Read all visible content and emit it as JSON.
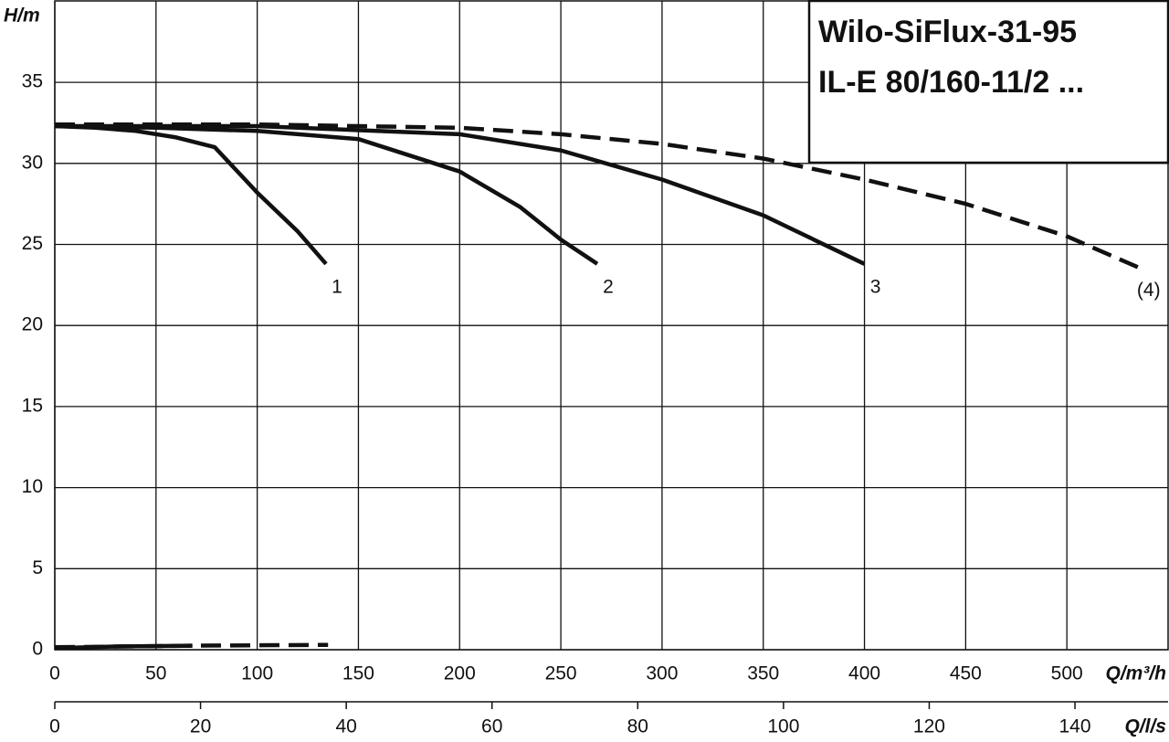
{
  "chart_data": {
    "type": "line",
    "title": [
      "Wilo-SiFlux-31-95",
      "IL-E 80/160-11/2 ..."
    ],
    "y_label": "H/m",
    "x_label": "Q/m³/h",
    "x2_label": "Q/l/s",
    "xlim": [
      0,
      550
    ],
    "xticks": [
      0,
      50,
      100,
      150,
      200,
      250,
      300,
      350,
      400,
      450,
      500
    ],
    "ylim": [
      0,
      40
    ],
    "yticks": [
      0,
      5,
      10,
      15,
      20,
      25,
      30,
      35
    ],
    "x2lim": [
      0,
      152.78
    ],
    "x2ticks": [
      0,
      20,
      40,
      60,
      80,
      100,
      120,
      140
    ],
    "grid": true,
    "series": [
      {
        "name": "1",
        "color": "#111111",
        "dash": false,
        "x": [
          0,
          20,
          40,
          60,
          79,
          100,
          120,
          134
        ],
        "values": [
          32.3,
          32.2,
          32,
          31.6,
          31,
          28.2,
          25.8,
          23.8
        ]
      },
      {
        "name": "2",
        "color": "#111111",
        "dash": false,
        "x": [
          0,
          50,
          100,
          150,
          200,
          230,
          250,
          268
        ],
        "values": [
          32.3,
          32.2,
          32,
          31.5,
          29.5,
          27.3,
          25.3,
          23.8
        ]
      },
      {
        "name": "3",
        "color": "#111111",
        "dash": false,
        "x": [
          0,
          100,
          200,
          250,
          300,
          350,
          400
        ],
        "values": [
          32.3,
          32.3,
          31.8,
          30.8,
          29,
          26.8,
          23.8
        ]
      },
      {
        "name": "(4)",
        "color": "#111111",
        "dash": true,
        "x": [
          0,
          100,
          200,
          250,
          300,
          350,
          400,
          450,
          500,
          535
        ],
        "values": [
          32.4,
          32.4,
          32.2,
          31.8,
          31.2,
          30.3,
          29,
          27.5,
          25.5,
          23.6
        ]
      },
      {
        "color": "#111111",
        "dash": false,
        "x": [
          0,
          30,
          68
        ],
        "values": [
          0.1,
          0.2,
          0.25
        ]
      },
      {
        "color": "#111111",
        "dash": true,
        "x": [
          0,
          68,
          135
        ],
        "values": [
          0.15,
          0.25,
          0.3
        ]
      }
    ]
  }
}
